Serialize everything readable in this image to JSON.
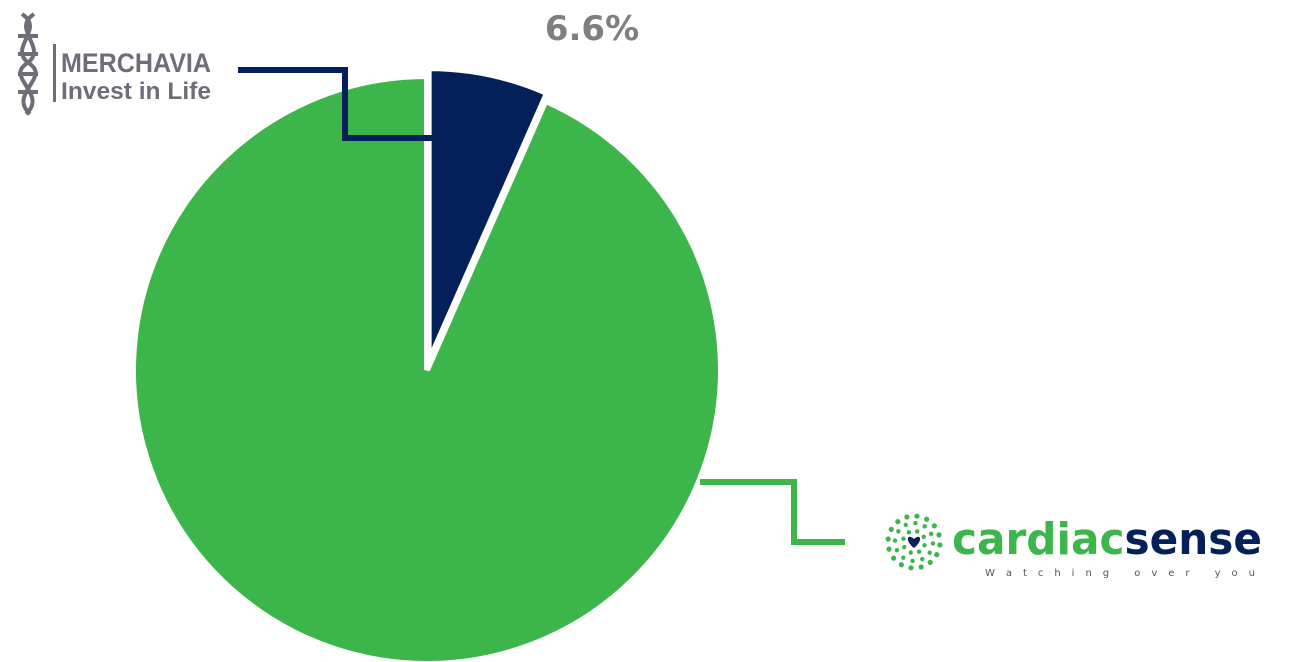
{
  "colors": {
    "merchavia": "#04205b",
    "cardiacsense": "#3cb54a",
    "label": "#7f7f7f",
    "merchavia_logo": "#6e6e78",
    "cs_tag": "#555555"
  },
  "chart_data": {
    "type": "pie",
    "title": "",
    "slices": [
      {
        "name": "Merchavia",
        "value": 6.6,
        "label": "6.6%",
        "color": "#04205b",
        "exploded": true
      },
      {
        "name": "CardiacSense",
        "value": 93.4,
        "label": "",
        "color": "#3cb54a",
        "exploded": false
      }
    ],
    "start_angle_deg": 0,
    "direction": "clockwise"
  },
  "logos": {
    "merchavia": {
      "name": "MERCHAVIA",
      "tagline": "Invest in Life",
      "icon": "dna-helix-icon"
    },
    "cardiacsense": {
      "word_part1": "cardiac",
      "word_part2": "sense",
      "tagline": "W a t c h i n g   o v e r   y o u",
      "icon": "dots-heart-icon",
      "colors": {
        "part1": "#3cb54a",
        "part2": "#04205b"
      }
    }
  }
}
